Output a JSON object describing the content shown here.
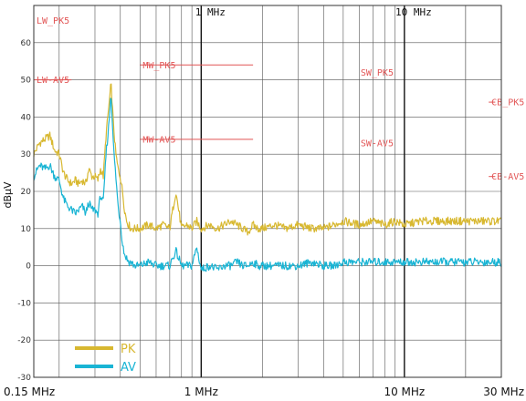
{
  "chart_data": {
    "type": "line",
    "title": "",
    "xlabel": "",
    "ylabel": "dBµV",
    "x_scale": "log",
    "xlim_mhz": [
      0.15,
      30
    ],
    "ylim": [
      -30,
      70
    ],
    "grid": true,
    "x_tick_labels": [
      {
        "mhz": 0.15,
        "label": "0.15 MHz"
      },
      {
        "mhz": 1,
        "label": "1 MHz"
      },
      {
        "mhz": 10,
        "label": "10 MHz"
      },
      {
        "mhz": 30,
        "label": "30 MHz"
      }
    ],
    "top_tick_labels": [
      {
        "mhz": 1,
        "label": "1 MHz"
      },
      {
        "mhz": 10,
        "label": "10 MHz"
      }
    ],
    "y_ticks": [
      -30,
      -20,
      -10,
      0,
      10,
      20,
      30,
      40,
      50,
      60
    ],
    "limit_lines": [
      {
        "name": "LW_PK5",
        "x_mhz": 0.15,
        "y": 66,
        "segment_mhz": null
      },
      {
        "name": "LW-AV5",
        "x_mhz": 0.15,
        "y": 50,
        "segment_mhz": [
          0.15,
          0.23
        ]
      },
      {
        "name": "MW_PK5",
        "x_mhz": 0.5,
        "y": 54,
        "segment_mhz": [
          0.5,
          1.8
        ]
      },
      {
        "name": "MW-AV5",
        "x_mhz": 0.5,
        "y": 34,
        "segment_mhz": [
          0.5,
          1.8
        ]
      },
      {
        "name": "SW_PK5",
        "x_mhz": 5.9,
        "y": 52,
        "segment_mhz": null
      },
      {
        "name": "SW-AV5",
        "x_mhz": 5.9,
        "y": 33,
        "segment_mhz": null
      },
      {
        "name": "CB_PK5",
        "x_mhz": 26,
        "y": 44,
        "segment_mhz": [
          26,
          28
        ]
      },
      {
        "name": "CB-AV5",
        "x_mhz": 26,
        "y": 24,
        "segment_mhz": [
          26,
          28
        ]
      }
    ],
    "series": [
      {
        "name": "PK",
        "color": "#d8b830",
        "x": [
          0.15,
          0.16,
          0.17,
          0.18,
          0.19,
          0.2,
          0.21,
          0.22,
          0.23,
          0.24,
          0.25,
          0.26,
          0.27,
          0.28,
          0.29,
          0.3,
          0.31,
          0.32,
          0.33,
          0.34,
          0.35,
          0.36,
          0.37,
          0.38,
          0.39,
          0.4,
          0.41,
          0.42,
          0.43,
          0.44,
          0.45,
          0.47,
          0.5,
          0.55,
          0.6,
          0.65,
          0.7,
          0.75,
          0.8,
          0.85,
          0.9,
          0.95,
          1.0,
          1.1,
          1.2,
          1.3,
          1.4,
          1.5,
          1.6,
          1.7,
          1.8,
          1.9,
          2.0,
          2.3,
          2.6,
          3.0,
          3.5,
          4.0,
          4.5,
          5.0,
          6.0,
          7.0,
          8.0,
          9.0,
          10.0,
          12.0,
          14.0,
          16.0,
          18.0,
          20.0,
          23.0,
          26.0,
          30.0
        ],
        "y": [
          30,
          33,
          34,
          35,
          31,
          30,
          25,
          23,
          22,
          23,
          22,
          23,
          22,
          26,
          24,
          24,
          23,
          26,
          24,
          35,
          42,
          49,
          38,
          30,
          26,
          24,
          20,
          15,
          12,
          11,
          10,
          10,
          10,
          11,
          10,
          11,
          10,
          20,
          10,
          11,
          10,
          12,
          10,
          11,
          10,
          11,
          12,
          11,
          10,
          9,
          11,
          10,
          10,
          11,
          10,
          11,
          10,
          10,
          11,
          12,
          11,
          12,
          11,
          12,
          11,
          12,
          12,
          12,
          12,
          12,
          12,
          12,
          12
        ]
      },
      {
        "name": "AV",
        "color": "#19b4d4",
        "x": [
          0.15,
          0.16,
          0.17,
          0.18,
          0.19,
          0.2,
          0.21,
          0.22,
          0.23,
          0.24,
          0.25,
          0.26,
          0.27,
          0.28,
          0.29,
          0.3,
          0.31,
          0.32,
          0.33,
          0.34,
          0.35,
          0.36,
          0.37,
          0.38,
          0.39,
          0.4,
          0.41,
          0.42,
          0.43,
          0.44,
          0.45,
          0.47,
          0.5,
          0.55,
          0.6,
          0.65,
          0.7,
          0.75,
          0.8,
          0.85,
          0.9,
          0.95,
          1.0,
          1.1,
          1.2,
          1.3,
          1.4,
          1.5,
          1.6,
          1.7,
          1.8,
          1.9,
          2.0,
          2.3,
          2.6,
          3.0,
          3.5,
          4.0,
          4.5,
          5.0,
          6.0,
          7.0,
          8.0,
          9.0,
          10.0,
          12.0,
          14.0,
          16.0,
          18.0,
          20.0,
          23.0,
          26.0,
          30.0
        ],
        "y": [
          24,
          27,
          26,
          27,
          24,
          23,
          18,
          16,
          15,
          14,
          15,
          16,
          14,
          17,
          15,
          15,
          14,
          19,
          17,
          30,
          37,
          47,
          32,
          24,
          16,
          12,
          6,
          3,
          2,
          1,
          1,
          0,
          0,
          1,
          0,
          0,
          0,
          4,
          0,
          0,
          0,
          5,
          -1,
          0,
          -1,
          0,
          0,
          1,
          0,
          0,
          1,
          0,
          0,
          0,
          0,
          0,
          1,
          0,
          0,
          1,
          1,
          1,
          1,
          1,
          1,
          1,
          1,
          1,
          1,
          1,
          1,
          1,
          1
        ]
      }
    ],
    "legend": {
      "placement": "bottom-left",
      "entries": [
        {
          "name": "PK",
          "color": "#d8b830"
        },
        {
          "name": "AV",
          "color": "#19b4d4"
        }
      ]
    }
  }
}
